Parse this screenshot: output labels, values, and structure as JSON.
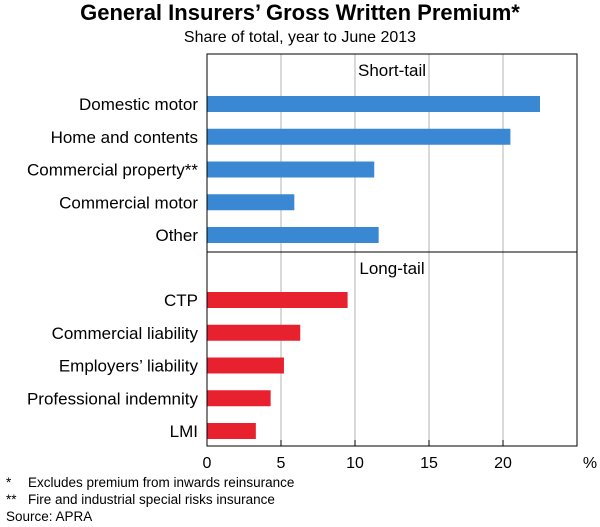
{
  "title": "General Insurers’ Gross Written Premium*",
  "subtitle": "Share of total, year to June 2013",
  "chart_data": {
    "type": "bar",
    "orientation": "horizontal",
    "unit": "%",
    "xlim": [
      0,
      25
    ],
    "xticks": [
      0,
      5,
      10,
      15,
      20
    ],
    "grid": true,
    "panels": [
      {
        "name": "Short-tail",
        "color": "#3a87d4",
        "categories": [
          "Domestic motor",
          "Home and contents",
          "Commercial property**",
          "Commercial motor",
          "Other"
        ],
        "values": [
          22.5,
          20.5,
          11.3,
          5.9,
          11.6
        ]
      },
      {
        "name": "Long-tail",
        "color": "#e8212e",
        "categories": [
          "CTP",
          "Commercial liability",
          "Employers’ liability",
          "Professional indemnity",
          "LMI"
        ],
        "values": [
          9.5,
          6.3,
          5.2,
          4.3,
          3.3
        ]
      }
    ]
  },
  "notes": [
    {
      "marker": "*",
      "text": "Excludes premium from inwards reinsurance"
    },
    {
      "marker": "**",
      "text": "Fire and industrial special risks insurance"
    }
  ],
  "source": "Source: APRA"
}
